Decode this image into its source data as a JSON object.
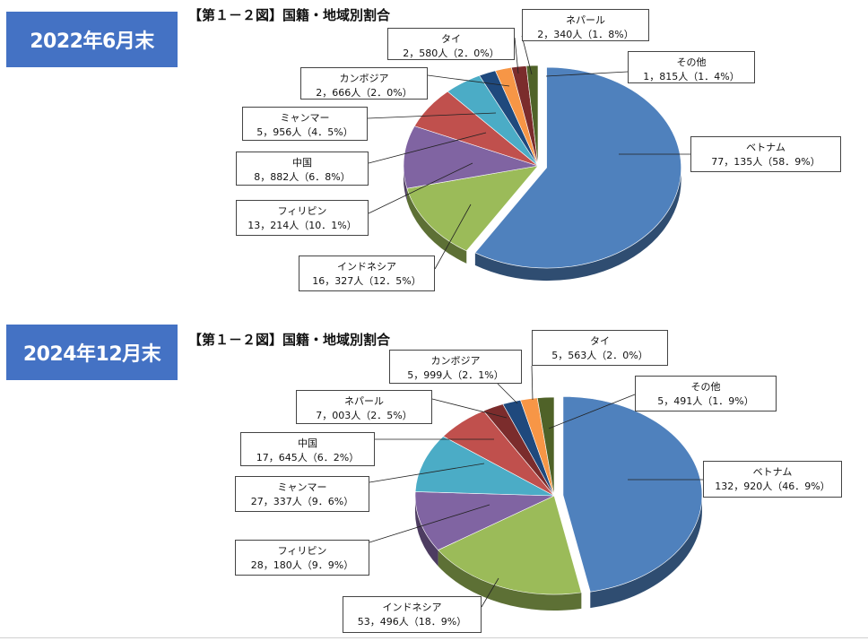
{
  "badges": {
    "top": "2022年6月末",
    "bottom": "2024年12月末"
  },
  "figure_titles": {
    "top": "【第１－２図】国籍・地域別割合",
    "bottom": "【第１－２図】国籍・地域別割合"
  },
  "colors": {
    "ベトナム": "#4f81bd",
    "インドネシア": "#9bbb59",
    "フィリピン": "#8064a2",
    "中国": "#c0504d",
    "ミャンマー": "#4bacc6",
    "カンボジア": "#1f497d",
    "タイ": "#f79646",
    "ネパール": "#7b2c2c",
    "その他": "#4f6228"
  },
  "chart_data": [
    {
      "type": "pie",
      "title": "【第１－２図】国籍・地域別割合",
      "period": "2022年6月末",
      "slices": [
        {
          "name": "ベトナム",
          "value": 77135,
          "value_label": "77，135人（58．9%）",
          "percent": 58.9
        },
        {
          "name": "インドネシア",
          "value": 16327,
          "value_label": "16，327人（12．5%）",
          "percent": 12.5
        },
        {
          "name": "フィリピン",
          "value": 13214,
          "value_label": "13，214人（10．1%）",
          "percent": 10.1
        },
        {
          "name": "中国",
          "value": 8882,
          "value_label": "8，882人（6．8%）",
          "percent": 6.8
        },
        {
          "name": "ミャンマー",
          "value": 5956,
          "value_label": "5，956人（4．5%）",
          "percent": 4.5
        },
        {
          "name": "カンボジア",
          "value": 2666,
          "value_label": "2，666人（2．0%）",
          "percent": 2.0
        },
        {
          "name": "タイ",
          "value": 2580,
          "value_label": "2，580人（2．0%）",
          "percent": 2.0
        },
        {
          "name": "ネパール",
          "value": 2340,
          "value_label": "2，340人（1．8%）",
          "percent": 1.8
        },
        {
          "name": "その他",
          "value": 1815,
          "value_label": "1，815人（1．4%）",
          "percent": 1.4
        }
      ]
    },
    {
      "type": "pie",
      "title": "【第１－２図】国籍・地域別割合",
      "period": "2024年12月末",
      "slices": [
        {
          "name": "ベトナム",
          "value": 132920,
          "value_label": "132，920人（46．9%）",
          "percent": 46.9
        },
        {
          "name": "インドネシア",
          "value": 53496,
          "value_label": "53，496人（18．9%）",
          "percent": 18.9
        },
        {
          "name": "フィリピン",
          "value": 28180,
          "value_label": "28，180人（9．9%）",
          "percent": 9.9
        },
        {
          "name": "ミャンマー",
          "value": 27337,
          "value_label": "27，337人（9．6%）",
          "percent": 9.6
        },
        {
          "name": "中国",
          "value": 17645,
          "value_label": "17，645人（6．2%）",
          "percent": 6.2
        },
        {
          "name": "ネパール",
          "value": 7003,
          "value_label": "7，003人（2．5%）",
          "percent": 2.5
        },
        {
          "name": "カンボジア",
          "value": 5999,
          "value_label": "5，999人（2．1%）",
          "percent": 2.1
        },
        {
          "name": "タイ",
          "value": 5563,
          "value_label": "5，563人（2．0%）",
          "percent": 2.0
        },
        {
          "name": "その他",
          "value": 5491,
          "value_label": "5，491人（1．9%）",
          "percent": 1.9
        }
      ]
    }
  ]
}
